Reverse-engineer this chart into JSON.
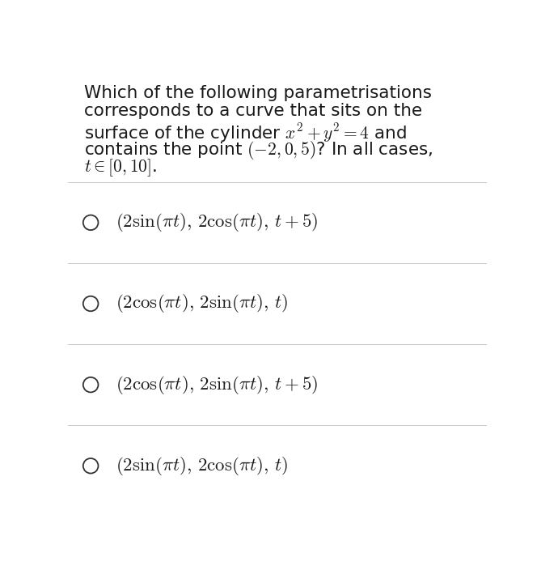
{
  "background_color": "#ffffff",
  "fig_width": 6.69,
  "fig_height": 7.15,
  "text_color": "#1a1a1a",
  "line_color": "#c8c8c8",
  "font_size_question": 15.5,
  "font_size_options": 16.5,
  "circle_color": "#333333",
  "question_lines": [
    "Which of the following parametrisations",
    "corresponds to a curve that sits on the",
    "surface of the cylinder $x^2 + y^2 = 4$ and",
    "contains the point $(-2, 0, 5)$? In all cases,",
    "$t \\in [0, 10]$."
  ],
  "options": [
    "$(2\\sin(\\pi t),\\, 2\\cos(\\pi t),\\, t+5)$",
    "$(2\\cos(\\pi t),\\, 2\\sin(\\pi t),\\, t)$",
    "$(2\\cos(\\pi t),\\, 2\\sin(\\pi t),\\, t+5)$",
    "$(2\\sin(\\pi t),\\, 2\\cos(\\pi t),\\, t)$"
  ]
}
